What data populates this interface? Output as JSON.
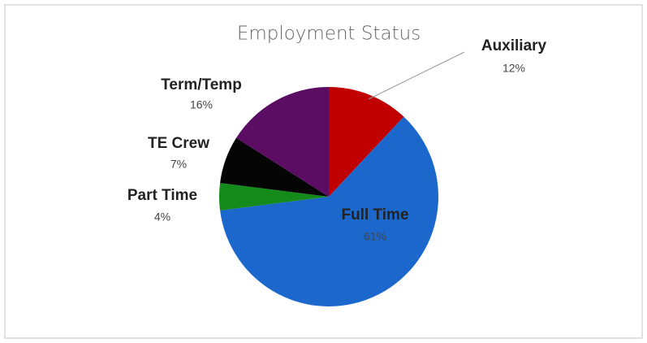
{
  "chart_data": {
    "type": "pie",
    "title": "Employment Status",
    "categories": [
      "Auxiliary",
      "Full Time",
      "Part Time",
      "TE Crew",
      "Term/Temp"
    ],
    "values": [
      12,
      61,
      4,
      7,
      16
    ],
    "value_labels": [
      "12%",
      "61%",
      "4%",
      "7%",
      "16%"
    ],
    "colors": [
      "#c00000",
      "#1b67cc",
      "#138a1a",
      "#050505",
      "#5a0d63"
    ]
  }
}
